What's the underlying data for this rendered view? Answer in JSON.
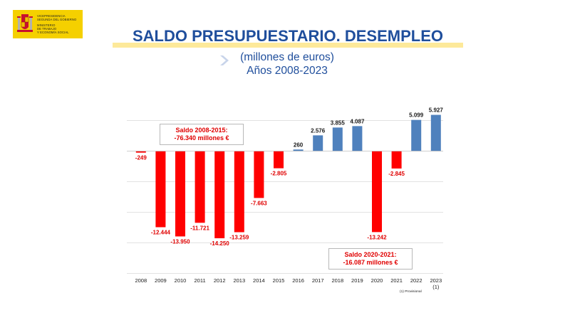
{
  "header": {
    "logo": {
      "lines": [
        "VICEPRESIDENCIA",
        "SEGUNDA DEL GOBIERNO",
        "MINISTERIO",
        "DE TRABAJO",
        "Y ECONOMÍA SOCIAL"
      ],
      "background": "#f5d000"
    },
    "title": "SALDO PRESUPUESTARIO. DESEMPLEO",
    "subtitle_line1": "(millones  de euros)",
    "subtitle_line2": "Años 2008-2023",
    "title_color": "#1f4e9c"
  },
  "annotations": {
    "box1_line1": "Saldo 2008-2015:",
    "box1_line2": "-76.340 millones €",
    "box2_line1": "Saldo 2020-2021:",
    "box2_line2": "-16.087 millones €",
    "footnote": "(1) Provisional"
  },
  "chart_data": {
    "type": "bar",
    "title": "SALDO PRESUPUESTARIO. DESEMPLEO",
    "subtitle": "(millones  de euros) Años 2008-2023",
    "categories": [
      "2008",
      "2009",
      "2010",
      "2011",
      "2012",
      "2013",
      "2014",
      "2015",
      "2016",
      "2017",
      "2018",
      "2019",
      "2020",
      "2021",
      "2022",
      "2023"
    ],
    "category_notes": {
      "2023": "(1)"
    },
    "values": [
      -249,
      -12444,
      -13950,
      -11721,
      -14250,
      -13259,
      -7663,
      -2805,
      260,
      2576,
      3855,
      4087,
      -13242,
      -2845,
      5099,
      5927
    ],
    "labels": [
      "-249",
      "-12.444",
      "-13.950",
      "-11.721",
      "-14.250",
      "-13.259",
      "-7.663",
      "-2.805",
      "260",
      "2.576",
      "3.855",
      "4.087",
      "-13.242",
      "-2.845",
      "5.099",
      "5.927"
    ],
    "positive_color": "#4f81bd",
    "negative_color": "#ff0000",
    "grid": true,
    "ylim": [
      -20000,
      8000
    ],
    "xlabel": "",
    "ylabel": ""
  }
}
